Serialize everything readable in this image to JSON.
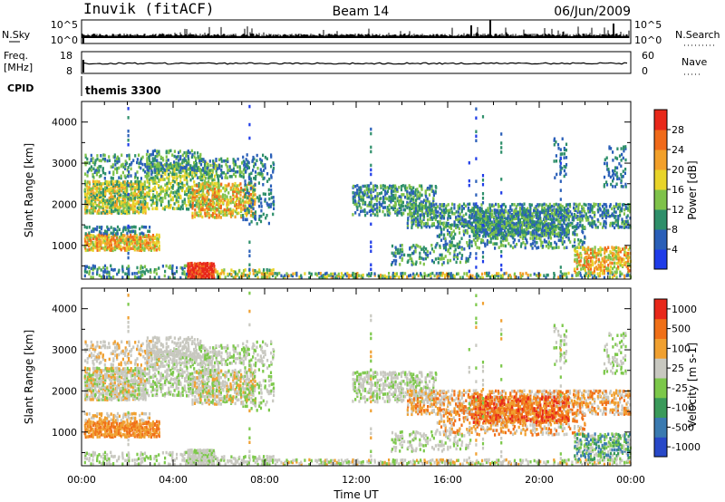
{
  "header": {
    "station": "Inuvik (fitACF)",
    "beam": "Beam 14",
    "date": "06/Jun/2009"
  },
  "top_panels": {
    "nsky_label": "N.Sky",
    "nsky_ticks": [
      "10^5",
      "10^0"
    ],
    "nsearch_label": "N.Search",
    "nsearch_ticks": [
      "10^5",
      "10^0"
    ],
    "freq_label_1": "Freq.",
    "freq_label_2": "[MHz]",
    "freq_ticks": [
      "18",
      "8"
    ],
    "nave_label": "Nave",
    "nave_ticks": [
      "60",
      "0"
    ],
    "cpid_label": "CPID",
    "cpid_value": "themis 3300"
  },
  "chart_data": [
    {
      "type": "heatmap",
      "name": "power",
      "ylabel": "Slant Range [km]",
      "xlabel": "",
      "yticks": [
        "4000",
        "3000",
        "2000",
        "1000"
      ],
      "ylim": [
        180,
        4500
      ],
      "colorbar_label": "Power [dB]",
      "colorbar_ticks": [
        "28",
        "24",
        "20",
        "16",
        "12",
        "8",
        "4"
      ],
      "colors": [
        "#1f3ce8",
        "#2a5fb8",
        "#2e8f6a",
        "#7fc24a",
        "#e8d42a",
        "#f2a02a",
        "#f06a1a",
        "#e8281a"
      ]
    },
    {
      "type": "heatmap",
      "name": "velocity",
      "ylabel": "Slant Range [km]",
      "xlabel": "Time UT",
      "yticks": [
        "4000",
        "3000",
        "2000",
        "1000"
      ],
      "ylim": [
        180,
        4500
      ],
      "xticks": [
        "00:00",
        "04:00",
        "08:00",
        "12:00",
        "16:00",
        "20:00",
        "00:00"
      ],
      "xlim": [
        0,
        24
      ],
      "colorbar_label": "Velocity [m s-1]",
      "colorbar_ticks": [
        "1000",
        "500",
        "100",
        "25",
        "-25",
        "-100",
        "-500",
        "-1000"
      ],
      "colors": [
        "#2848c8",
        "#3a7ab0",
        "#3a9a5a",
        "#7cc84a",
        "#c8c8c0",
        "#f0a030",
        "#f07018",
        "#e8281a"
      ]
    }
  ]
}
